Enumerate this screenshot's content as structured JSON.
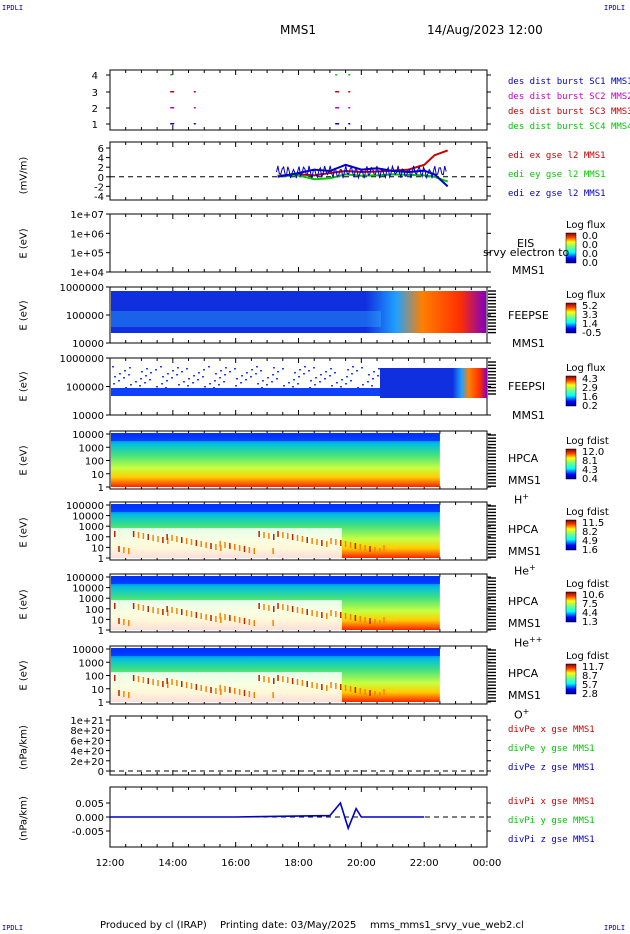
{
  "header": {
    "corner_label": "IPDLI",
    "spacecraft": "MMS1",
    "datetime": "14/Aug/2023 12:00"
  },
  "footer": {
    "produced_by": "Produced by cl (IRAP)",
    "printing_date": "Printing date: 03/May/2025",
    "filename": "mms_mms1_srvy_vue_web2.cl"
  },
  "time_axis": {
    "ticks": [
      "12:00",
      "14:00",
      "16:00",
      "18:00",
      "20:00",
      "22:00",
      "00:00"
    ]
  },
  "colors": {
    "mms1": "#0000c8",
    "mms2": "#c800c8",
    "mms3": "#c80000",
    "mms4": "#00c800"
  },
  "panels": {
    "burst": {
      "yticks": [
        "4",
        "3",
        "2",
        "1"
      ],
      "legend": [
        "des dist burst SC1 MMS1",
        "des dist burst SC2 MMS2",
        "des dist burst SC3 MMS3",
        "des dist burst SC4 MMS4"
      ]
    },
    "efield": {
      "ylabel": "(mV/m)",
      "yticks": [
        "6",
        "4",
        "2",
        "0",
        "-2",
        "-4"
      ],
      "legend": [
        "edi ex gse l2 MMS1",
        "edi ey gse l2 MMS1",
        "edi ez gse l2 MMS1"
      ]
    },
    "eis": {
      "ylabel": "E (eV)",
      "yticks": [
        "1e+07",
        "1e+06",
        "1e+05",
        "1e+04"
      ],
      "name": "EIS",
      "overlay": "srvy electron to",
      "sc": "MMS1",
      "cb_title": "Log flux",
      "cb_ticks": [
        "0.0",
        "0.0",
        "0.0",
        "0.0"
      ]
    },
    "feepse": {
      "ylabel": "E (eV)",
      "yticks": [
        "1000000",
        "100000",
        "10000"
      ],
      "name": "FEEPSE",
      "sc": "MMS1",
      "cb_title": "Log flux",
      "cb_ticks": [
        "5.2",
        "3.3",
        "1.4",
        "-0.5"
      ]
    },
    "feepsi": {
      "ylabel": "E (eV)",
      "yticks": [
        "1000000",
        "100000",
        "10000"
      ],
      "name": "FEEPSI",
      "sc": "MMS1",
      "cb_title": "Log flux",
      "cb_ticks": [
        "4.3",
        "2.9",
        "1.6",
        "0.2"
      ]
    },
    "hpca_h": {
      "ylabel": "E (eV)",
      "yticks": [
        "10000",
        "1000",
        "100",
        "10",
        "1"
      ],
      "name": "HPCA",
      "sc": "MMS1",
      "species": "H",
      "charge": "+",
      "cb_title": "Log fdist",
      "cb_ticks": [
        "12.0",
        "8.1",
        "4.3",
        "0.4"
      ]
    },
    "hpca_he": {
      "ylabel": "E (eV)",
      "yticks": [
        "100000",
        "10000",
        "1000",
        "100",
        "10",
        "1"
      ],
      "name": "HPCA",
      "sc": "MMS1",
      "species": "He",
      "charge": "+",
      "cb_title": "Log fdist",
      "cb_ticks": [
        "11.5",
        "8.2",
        "4.9",
        "1.6"
      ]
    },
    "hpca_hepp": {
      "ylabel": "E (eV)",
      "yticks": [
        "100000",
        "10000",
        "1000",
        "100",
        "10",
        "1"
      ],
      "name": "HPCA",
      "sc": "MMS1",
      "species": "He",
      "charge": "++",
      "cb_title": "Log fdist",
      "cb_ticks": [
        "10.6",
        "7.5",
        "4.4",
        "1.3"
      ]
    },
    "hpca_o": {
      "ylabel": "E (eV)",
      "yticks": [
        "10000",
        "1000",
        "100",
        "10",
        "1"
      ],
      "name": "HPCA",
      "sc": "MMS1",
      "species": "O",
      "charge": "+",
      "cb_title": "Log fdist",
      "cb_ticks": [
        "11.7",
        "8.7",
        "5.7",
        "2.8"
      ]
    },
    "divpe": {
      "ylabel": "(nPa/km)",
      "yticks": [
        "1e+21",
        "8e+20",
        "6e+20",
        "4e+20",
        "2e+20",
        "0"
      ],
      "legend": [
        "divPe x gse MMS1",
        "divPe y gse MMS1",
        "divPe z gse MMS1"
      ]
    },
    "divpi": {
      "ylabel": "(nPa/km)",
      "yticks": [
        "0.005",
        "0.000",
        "-0.005"
      ],
      "legend": [
        "divPi x gse MMS1",
        "divPi y gse MMS1",
        "divPi z gse MMS1"
      ]
    }
  },
  "chart_data": [
    {
      "type": "scatter",
      "name": "burst intervals",
      "series": [
        {
          "name": "des dist burst SC1 MMS1",
          "x": [
            "13:55",
            "14:40",
            "19:10",
            "19:35"
          ],
          "y": [
            1,
            1,
            1,
            1
          ]
        },
        {
          "name": "des dist burst SC2 MMS2",
          "x": [
            "13:55",
            "14:40",
            "19:10",
            "19:35"
          ],
          "y": [
            2,
            2,
            2,
            2
          ]
        },
        {
          "name": "des dist burst SC3 MMS3",
          "x": [
            "13:55",
            "14:40",
            "19:10",
            "19:35"
          ],
          "y": [
            3,
            3,
            3,
            3
          ]
        },
        {
          "name": "des dist burst SC4 MMS4",
          "x": [
            "13:55",
            "19:10",
            "19:35"
          ],
          "y": [
            4,
            4,
            4
          ]
        }
      ],
      "ylim": [
        0.5,
        4.5
      ]
    },
    {
      "type": "line",
      "name": "EDI E field",
      "x": [
        "17:20",
        "18:00",
        "18:30",
        "19:00",
        "19:30",
        "20:00",
        "20:30",
        "21:00",
        "21:30",
        "22:00",
        "22:20",
        "22:45"
      ],
      "series": [
        {
          "name": "edi ex gse l2 MMS1",
          "values": [
            0.2,
            0.5,
            0.3,
            0.8,
            1.2,
            1.0,
            1.1,
            1.3,
            1.5,
            2.5,
            4.5,
            5.5
          ]
        },
        {
          "name": "edi ey gse l2 MMS1",
          "values": [
            0.1,
            0.3,
            -0.5,
            -0.3,
            0.5,
            0.2,
            0.3,
            0.5,
            0.4,
            0.3,
            0.0,
            -1.0
          ]
        },
        {
          "name": "edi ez gse l2 MMS1",
          "values": [
            0.0,
            0.8,
            1.5,
            1.2,
            2.5,
            1.5,
            1.8,
            1.2,
            1.0,
            1.3,
            0.5,
            -2.0
          ]
        }
      ],
      "ylim": [
        -4,
        6
      ]
    },
    {
      "type": "heatmap",
      "name": "EIS",
      "x_range": [
        "12:00",
        "00:00"
      ],
      "values": []
    },
    {
      "type": "heatmap",
      "name": "FEEPSE",
      "x_range": [
        "12:00",
        "00:00"
      ],
      "y_range": [
        10000,
        1000000
      ],
      "y_scale": "log",
      "z_range": [
        -0.5,
        5.2
      ]
    },
    {
      "type": "heatmap",
      "name": "FEEPSI",
      "x_range": [
        "12:00",
        "00:00"
      ],
      "y_range": [
        10000,
        1000000
      ],
      "y_scale": "log",
      "z_range": [
        0.2,
        4.3
      ]
    },
    {
      "type": "heatmap",
      "name": "HPCA H+",
      "x_range": [
        "12:00",
        "22:30"
      ],
      "y_range": [
        1,
        10000
      ],
      "y_scale": "log",
      "z_range": [
        0.4,
        12.0
      ]
    },
    {
      "type": "heatmap",
      "name": "HPCA He+",
      "x_range": [
        "12:00",
        "22:30"
      ],
      "y_range": [
        1,
        100000
      ],
      "y_scale": "log",
      "z_range": [
        1.6,
        11.5
      ]
    },
    {
      "type": "heatmap",
      "name": "HPCA He++",
      "x_range": [
        "12:00",
        "22:30"
      ],
      "y_range": [
        1,
        100000
      ],
      "y_scale": "log",
      "z_range": [
        1.3,
        10.6
      ]
    },
    {
      "type": "heatmap",
      "name": "HPCA O+",
      "x_range": [
        "12:00",
        "22:30"
      ],
      "y_range": [
        1,
        10000
      ],
      "y_scale": "log",
      "z_range": [
        2.8,
        11.7
      ]
    },
    {
      "type": "line",
      "name": "divPe",
      "ylim": [
        0,
        1e+21
      ],
      "series": []
    },
    {
      "type": "line",
      "name": "divPi",
      "x": [
        "12:00",
        "16:00",
        "19:00",
        "19:20",
        "19:35",
        "19:50",
        "20:00",
        "20:30",
        "22:00"
      ],
      "series": [
        {
          "name": "divPi z gse MMS1",
          "values": [
            0.0,
            0.0,
            0.0005,
            0.005,
            -0.004,
            0.003,
            0.0,
            0.0,
            0.0
          ]
        }
      ],
      "ylim": [
        -0.008,
        0.008
      ]
    }
  ]
}
